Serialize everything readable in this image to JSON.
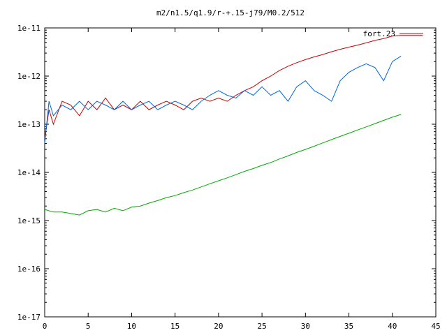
{
  "chart_data": {
    "type": "line",
    "title": "m2/n1.5/q1.9/r-+.15-j79/M0.2/512",
    "xlabel": "",
    "ylabel": "",
    "xlim": [
      0,
      45
    ],
    "ylim": [
      1e-17,
      1e-11
    ],
    "yscale": "log",
    "grid": false,
    "legend_position": "top-right",
    "legend_entry": "fort.23",
    "xticks": [
      0,
      5,
      10,
      15,
      20,
      25,
      30,
      35,
      40,
      45
    ],
    "xtick_labels": [
      "0",
      "5",
      "10",
      "15",
      "20",
      "25",
      "30",
      "35",
      "40",
      "45"
    ],
    "yticks": [
      1e-17,
      1e-16,
      1e-15,
      1e-14,
      1e-13,
      1e-12,
      1e-11
    ],
    "ytick_labels": [
      "1e-17",
      "1e-16",
      "1e-15",
      "1e-14",
      "1e-13",
      "1e-12",
      "1e-11"
    ],
    "series": [
      {
        "name": "fort.23",
        "color": "#cc0000",
        "x": [
          0,
          0.5,
          1,
          2,
          3,
          4,
          5,
          6,
          7,
          8,
          9,
          10,
          11,
          12,
          13,
          14,
          15,
          16,
          17,
          18,
          19,
          20,
          21,
          22,
          23,
          24,
          25,
          26,
          27,
          28,
          29,
          30,
          31,
          32,
          33,
          34,
          35,
          36,
          37,
          38,
          39,
          40,
          41,
          42,
          43.5
        ],
        "y": [
          5e-14,
          2e-13,
          1e-13,
          3e-13,
          2.5e-13,
          1.5e-13,
          3e-13,
          2e-13,
          3.5e-13,
          2e-13,
          2.5e-13,
          2e-13,
          3e-13,
          2e-13,
          2.5e-13,
          3e-13,
          2.5e-13,
          2e-13,
          3e-13,
          3.5e-13,
          3e-13,
          3.5e-13,
          3e-13,
          4e-13,
          5e-13,
          6e-13,
          8e-13,
          1e-12,
          1.3e-12,
          1.6e-12,
          1.9e-12,
          2.2e-12,
          2.5e-12,
          2.8e-12,
          3.2e-12,
          3.6e-12,
          4e-12,
          4.4e-12,
          4.9e-12,
          5.5e-12,
          6e-12,
          6.8e-12,
          7e-12,
          7e-12,
          7e-12
        ]
      },
      {
        "color": "#0066dd",
        "x": [
          0,
          0.5,
          1,
          2,
          3,
          4,
          5,
          6,
          7,
          8,
          9,
          10,
          11,
          12,
          13,
          14,
          15,
          16,
          17,
          18,
          19,
          20,
          21,
          22,
          23,
          24,
          25,
          26,
          27,
          28,
          29,
          30,
          31,
          32,
          33,
          34,
          35,
          36,
          37,
          38,
          39,
          40,
          41
        ],
        "y": [
          4e-14,
          3e-13,
          1.5e-13,
          2.5e-13,
          2e-13,
          3e-13,
          2e-13,
          3e-13,
          2.5e-13,
          2e-13,
          3e-13,
          2e-13,
          2.5e-13,
          3e-13,
          2e-13,
          2.5e-13,
          3e-13,
          2.5e-13,
          2e-13,
          3e-13,
          4e-13,
          5e-13,
          4e-13,
          3.5e-13,
          5e-13,
          4e-13,
          6e-13,
          4e-13,
          5e-13,
          3e-13,
          6e-13,
          8e-13,
          5e-13,
          4e-13,
          3e-13,
          8e-13,
          1.2e-12,
          1.5e-12,
          1.8e-12,
          1.5e-12,
          8e-13,
          2e-12,
          2.6e-12
        ]
      },
      {
        "color": "#00aa00",
        "x": [
          0,
          1,
          2,
          3,
          4,
          5,
          6,
          7,
          8,
          9,
          10,
          11,
          12,
          13,
          14,
          15,
          16,
          17,
          18,
          19,
          20,
          21,
          22,
          23,
          24,
          25,
          26,
          27,
          28,
          29,
          30,
          31,
          32,
          33,
          34,
          35,
          36,
          37,
          38,
          39,
          40,
          41
        ],
        "y": [
          1.7e-15,
          1.5e-15,
          1.5e-15,
          1.4e-15,
          1.3e-15,
          1.6e-15,
          1.7e-15,
          1.5e-15,
          1.8e-15,
          1.6e-15,
          1.9e-15,
          2e-15,
          2.3e-15,
          2.6e-15,
          3e-15,
          3.3e-15,
          3.8e-15,
          4.3e-15,
          5e-15,
          5.8e-15,
          6.7e-15,
          7.7e-15,
          9e-15,
          1.05e-14,
          1.2e-14,
          1.4e-14,
          1.6e-14,
          1.9e-14,
          2.2e-14,
          2.6e-14,
          3e-14,
          3.5e-14,
          4.1e-14,
          4.8e-14,
          5.6e-14,
          6.5e-14,
          7.6e-14,
          8.8e-14,
          1.03e-13,
          1.2e-13,
          1.4e-13,
          1.6e-13
        ]
      }
    ]
  }
}
